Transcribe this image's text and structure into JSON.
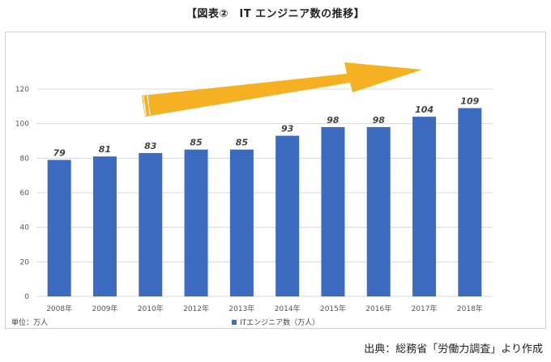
{
  "title": "【図表②　IT エンジニア数の推移】",
  "unit_label": "単位：万人",
  "source": "出典：総務省「労働力調査」より作成",
  "colors": {
    "bar": "#3c6bbf",
    "arrow": "#f5b121",
    "grid": "#d9d9d9"
  },
  "chart_data": {
    "type": "bar",
    "categories": [
      "2008年",
      "2009年",
      "2010年",
      "2012年",
      "2013年",
      "2014年",
      "2015年",
      "2016年",
      "2017年",
      "2018年"
    ],
    "series": [
      {
        "name": "ITエンジニア数（万人）",
        "values": [
          79,
          81,
          83,
          85,
          85,
          93,
          98,
          98,
          104,
          109
        ]
      }
    ],
    "ylim": [
      0,
      120
    ],
    "yticks": [
      0,
      20,
      40,
      60,
      80,
      100,
      120
    ],
    "grid": true,
    "legend": "bottom-center",
    "annotations": [
      "upward-trend-arrow"
    ]
  }
}
